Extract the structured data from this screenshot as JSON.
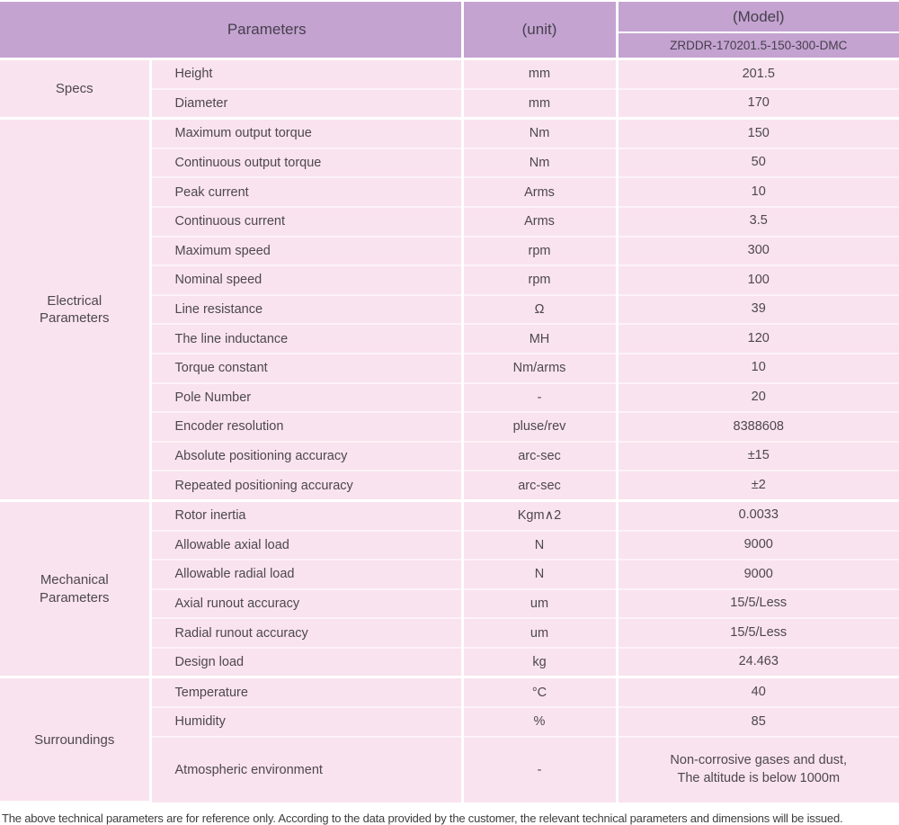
{
  "header": {
    "parameters_label": "Parameters",
    "unit_label": "(unit)",
    "model_label": "(Model)",
    "model_value": "ZRDDR-170201.5-150-300-DMC"
  },
  "colors": {
    "header_bg": "#c4a3d1",
    "header_text": "#46404c",
    "row_bg": "#f9e3ee",
    "row_divider": "#fdf2f8",
    "section_border": "#ffffff",
    "body_text": "#4d4750",
    "footnote_text": "#3d3d3d"
  },
  "sections": [
    {
      "id": "specs",
      "category": "Specs",
      "rows": [
        {
          "name": "Height",
          "unit": "mm",
          "value": "201.5"
        },
        {
          "name": "Diameter",
          "unit": "mm",
          "value": "170"
        }
      ]
    },
    {
      "id": "electrical-parameters",
      "category": "Electrical\nParameters",
      "rows": [
        {
          "name": "Maximum output torque",
          "unit": "Nm",
          "value": "150"
        },
        {
          "name": "Continuous output torque",
          "unit": "Nm",
          "value": "50"
        },
        {
          "name": "Peak current",
          "unit": "Arms",
          "value": "10"
        },
        {
          "name": "Continuous current",
          "unit": "Arms",
          "value": "3.5"
        },
        {
          "name": "Maximum speed",
          "unit": "rpm",
          "value": "300"
        },
        {
          "name": "Nominal speed",
          "unit": "rpm",
          "value": "100"
        },
        {
          "name": "Line resistance",
          "unit": "Ω",
          "value": "39"
        },
        {
          "name": "The line inductance",
          "unit": "MH",
          "value": "120"
        },
        {
          "name": "Torque constant",
          "unit": "Nm/arms",
          "value": "10"
        },
        {
          "name": "Pole Number",
          "unit": "-",
          "value": "20"
        },
        {
          "name": "Encoder resolution",
          "unit": "pluse/rev",
          "value": "8388608"
        },
        {
          "name": "Absolute positioning accuracy",
          "unit": "arc-sec",
          "value": "±15"
        },
        {
          "name": "Repeated positioning accuracy",
          "unit": "arc-sec",
          "value": "±2"
        }
      ]
    },
    {
      "id": "mechanical-parameters",
      "category": "Mechanical\nParameters",
      "rows": [
        {
          "name": "Rotor inertia",
          "unit": "Kgm∧2",
          "value": "0.0033"
        },
        {
          "name": "Allowable axial load",
          "unit": "N",
          "value": "9000"
        },
        {
          "name": "Allowable radial load",
          "unit": "N",
          "value": "9000"
        },
        {
          "name": "Axial runout accuracy",
          "unit": "um",
          "value": "15/5/Less"
        },
        {
          "name": "Radial runout accuracy",
          "unit": "um",
          "value": "15/5/Less"
        },
        {
          "name": "Design load",
          "unit": "kg",
          "value": "24.463"
        }
      ]
    },
    {
      "id": "surroundings",
      "category": "Surroundings",
      "rows": [
        {
          "name": "Temperature",
          "unit": "°C",
          "value": "40"
        },
        {
          "name": "Humidity",
          "unit": "%",
          "value": "85"
        },
        {
          "name": "Atmospheric environment",
          "unit": "-",
          "value": "Non-corrosive gases and dust,\nThe altitude is below 1000m",
          "tall": true
        }
      ]
    }
  ],
  "footer": {
    "note": "The above technical parameters are for reference only. According to the data provided by the customer, the relevant technical parameters and dimensions will be issued."
  }
}
